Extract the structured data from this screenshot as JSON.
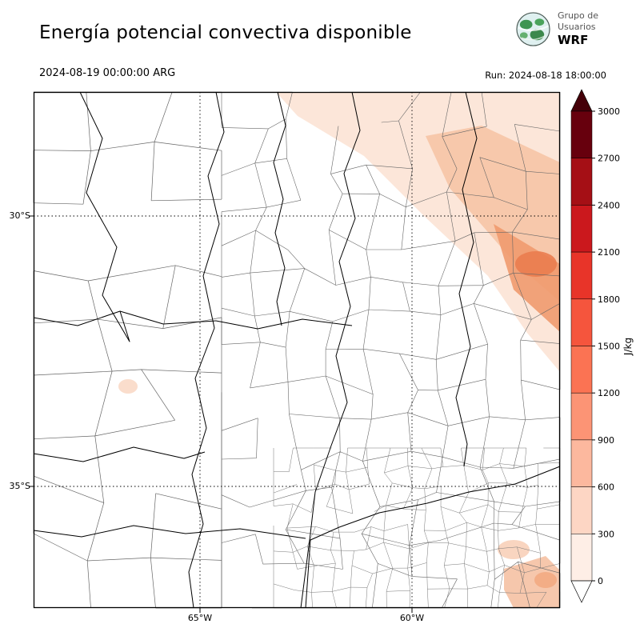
{
  "header": {
    "title": "Energía potencial convectiva disponible",
    "valid_time": "2024-08-19 00:00:00 ARG",
    "run": "Run: 2024-08-18 18:00:00",
    "logo": {
      "line1": "Grupo de",
      "line2": "Usuarios",
      "line3": "WRF"
    }
  },
  "map": {
    "lat_labels": [
      "30°S",
      "35°S"
    ],
    "lon_labels": [
      "65°W",
      "60°W"
    ]
  },
  "colorbar": {
    "unit": "J/kg",
    "tick_labels": [
      "3000",
      "2700",
      "2400",
      "2100",
      "1800",
      "1500",
      "1200",
      "900",
      "600",
      "300",
      "0"
    ],
    "segment_colors_top_to_bottom": [
      "#67000d",
      "#a50f15",
      "#cb181d",
      "#e83429",
      "#f5553d",
      "#fb7353",
      "#fc9475",
      "#fcb89e",
      "#fdd6c4",
      "#feeee6"
    ],
    "over_color": "#450009",
    "under_color": "#ffffff"
  }
}
